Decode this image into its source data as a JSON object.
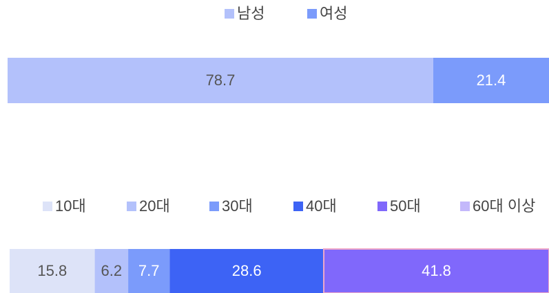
{
  "chart_data": [
    {
      "type": "stacked_bar_horizontal",
      "series": [
        {
          "name": "남성",
          "color": "#b3c1fb",
          "values": [
            78.7
          ]
        },
        {
          "name": "여성",
          "color": "#7b9bfb",
          "values": [
            21.4
          ]
        }
      ]
    },
    {
      "type": "stacked_bar_horizontal",
      "series": [
        {
          "name": "10대",
          "color": "#dde3f8",
          "values": [
            15.8
          ]
        },
        {
          "name": "20대",
          "color": "#b3c1fb",
          "values": [
            6.2
          ]
        },
        {
          "name": "30대",
          "color": "#7b9bfb",
          "values": [
            7.7
          ]
        },
        {
          "name": "40대",
          "color": "#3d63f5",
          "values": [
            28.6
          ]
        },
        {
          "name": "50대",
          "color": "#8068fb",
          "values": [
            41.8
          ]
        },
        {
          "name": "60대 이상",
          "color": "#c3b8fb",
          "values": []
        }
      ]
    }
  ]
}
